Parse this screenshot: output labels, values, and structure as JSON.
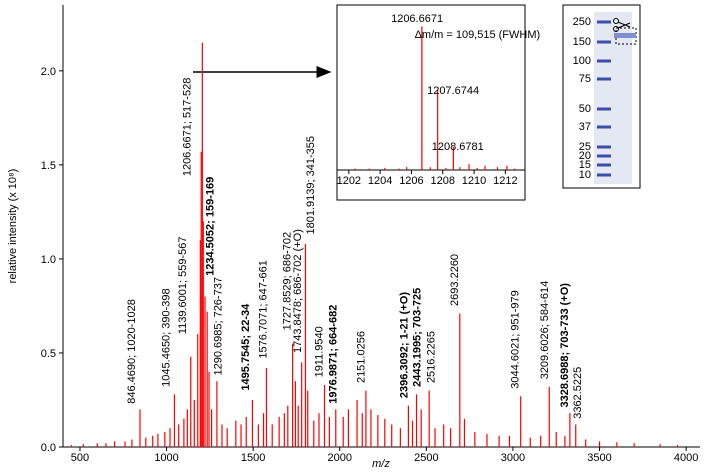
{
  "chart_data": [
    {
      "type": "stem",
      "color": "#ff0000",
      "xlabel": "m/z",
      "ylabel": "relative intensity (x 10⁸)",
      "xlim": [
        402,
        4080
      ],
      "ylim": [
        0,
        2.35
      ],
      "xticks": [
        500,
        1000,
        1500,
        2000,
        2500,
        3000,
        3500,
        4000
      ],
      "yticks": [
        {
          "value": 0,
          "label": "0.0"
        },
        0.5,
        {
          "value": 1,
          "label": "1.0"
        },
        1.5,
        {
          "value": 2,
          "label": "2.0"
        }
      ],
      "x": [
        450,
        520,
        600,
        650,
        700,
        760,
        800,
        846.469,
        880,
        920,
        950,
        990,
        1020,
        1045.465,
        1070,
        1100,
        1120,
        1139.6,
        1160,
        1180,
        1195,
        1200,
        1206.6671,
        1212,
        1222,
        1234.5052,
        1245,
        1260,
        1290.6985,
        1320,
        1350,
        1400,
        1430,
        1460,
        1495.7545,
        1530,
        1560,
        1576.7071,
        1610,
        1650,
        1680,
        1700,
        1727.8529,
        1743.8478,
        1760,
        1780,
        1801.9139,
        1815,
        1850,
        1880,
        1911.954,
        1940,
        1976.9871,
        2020,
        2050,
        2100,
        2130,
        2151.0256,
        2180,
        2220,
        2260,
        2300,
        2350,
        2396.3092,
        2420,
        2443.1995,
        2470,
        2516.2265,
        2550,
        2600,
        2640,
        2693.226,
        2720,
        2780,
        2850,
        2920,
        2980,
        3044.6021,
        3100,
        3160,
        3209.6026,
        3250,
        3300,
        3328.6988,
        3362.5225,
        3420,
        3500,
        3600,
        3700,
        3850,
        3950
      ],
      "values": [
        0.01,
        0.015,
        0.02,
        0.02,
        0.03,
        0.03,
        0.04,
        0.2,
        0.05,
        0.06,
        0.07,
        0.08,
        0.1,
        0.28,
        0.12,
        0.15,
        0.2,
        0.48,
        0.25,
        0.6,
        1.1,
        1.57,
        2.15,
        1.2,
        0.8,
        0.72,
        0.4,
        0.2,
        0.35,
        0.12,
        0.1,
        0.14,
        0.12,
        0.16,
        0.25,
        0.12,
        0.18,
        0.42,
        0.12,
        0.16,
        0.18,
        0.22,
        0.55,
        0.35,
        0.22,
        0.45,
        1.08,
        0.3,
        0.14,
        0.18,
        0.33,
        0.16,
        0.2,
        0.16,
        0.2,
        0.25,
        0.18,
        0.3,
        0.2,
        0.17,
        0.15,
        0.12,
        0.1,
        0.22,
        0.14,
        0.28,
        0.2,
        0.3,
        0.1,
        0.12,
        0.1,
        0.71,
        0.15,
        0.08,
        0.07,
        0.06,
        0.06,
        0.27,
        0.05,
        0.06,
        0.32,
        0.08,
        0.06,
        0.18,
        0.12,
        0.04,
        0.03,
        0.025,
        0.02,
        0.015,
        0.01
      ],
      "annotation_rotation": 90,
      "annotations": [
        {
          "text": "846.4690; 1020-1028",
          "x": 800,
          "y": 0.23,
          "bold": false
        },
        {
          "text": "1045.4650; 390-398",
          "x": 1000,
          "y": 0.32,
          "bold": false
        },
        {
          "text": "1139.6001; 559-567",
          "x": 1095,
          "y": 0.6,
          "bold": false
        },
        {
          "text": "1206.6671; 517-528",
          "x": 1120,
          "y": 1.44,
          "bold": false
        },
        {
          "text": "1234.5052; 159-169",
          "x": 1255,
          "y": 0.91,
          "bold": true
        },
        {
          "text": "1290.6985; 726-737",
          "x": 1300,
          "y": 0.38,
          "bold": false
        },
        {
          "text": "1495.7545; 22-34",
          "x": 1460,
          "y": 0.3,
          "bold": true
        },
        {
          "text": "1576.7071; 647-661",
          "x": 1560,
          "y": 0.47,
          "bold": false
        },
        {
          "text": "1727.8529; 686-702",
          "x": 1700,
          "y": 0.62,
          "bold": false
        },
        {
          "text": "1743.8478; 686-702 (+O)",
          "x": 1760,
          "y": 0.5,
          "bold": false
        },
        {
          "text": "1801.9139; 341-355",
          "x": 1835,
          "y": 1.13,
          "bold": false
        },
        {
          "text": "1911.9540",
          "x": 1885,
          "y": 0.37,
          "bold": false
        },
        {
          "text": "1976.9871; 664-682",
          "x": 1965,
          "y": 0.23,
          "bold": true
        },
        {
          "text": "2151.0256",
          "x": 2125,
          "y": 0.34,
          "bold": false
        },
        {
          "text": "2396.3092; 1-21 (+O)",
          "x": 2375,
          "y": 0.26,
          "bold": true
        },
        {
          "text": "2443.1995; 703-725",
          "x": 2450,
          "y": 0.32,
          "bold": true
        },
        {
          "text": "2516.2265",
          "x": 2530,
          "y": 0.34,
          "bold": false
        },
        {
          "text": "2693.2260",
          "x": 2665,
          "y": 0.75,
          "bold": false
        },
        {
          "text": "3044.6021; 951-979",
          "x": 3015,
          "y": 0.31,
          "bold": false
        },
        {
          "text": "3209.6026; 584-614",
          "x": 3185,
          "y": 0.36,
          "bold": false
        },
        {
          "text": "3328.6988; 703-733 (+O)",
          "x": 3300,
          "y": 0.21,
          "bold": true
        },
        {
          "text": "3362.5225",
          "x": 3375,
          "y": 0.15,
          "bold": false
        }
      ]
    },
    {
      "type": "stem",
      "color": "#ff0000",
      "xlim": [
        1201.5,
        1213
      ],
      "ylim": [
        0,
        1.1
      ],
      "xticks": [
        1202,
        1204,
        1206,
        1208,
        1210,
        1212
      ],
      "x": [
        1202.4,
        1203.3,
        1204.3,
        1205.2,
        1205.7,
        1206.6671,
        1207.2,
        1207.6744,
        1208.2,
        1208.6781,
        1209.1,
        1209.68,
        1210.2,
        1210.7,
        1211.5,
        1212.1,
        1212.6
      ],
      "values": [
        0.01,
        0.01,
        0.015,
        0.01,
        0.02,
        1.0,
        0.02,
        0.56,
        0.015,
        0.16,
        0.02,
        0.04,
        0.015,
        0.03,
        0.02,
        0.03,
        0.01
      ],
      "annotation_rotation": 0,
      "annotations": [
        {
          "text": "1206.6671",
          "x": 1204.7,
          "y": 1.03,
          "bold": false
        },
        {
          "text": "Δm/m = 109,515 (FWHM)",
          "x": 1206.2,
          "y": 0.92,
          "bold": false
        },
        {
          "text": "1207.6744",
          "x": 1207.0,
          "y": 0.53,
          "bold": false
        },
        {
          "text": "1208.6781",
          "x": 1207.3,
          "y": 0.14,
          "bold": false
        }
      ]
    }
  ],
  "gel": {
    "markers": [
      250,
      150,
      100,
      75,
      50,
      37,
      25,
      20,
      15,
      10
    ]
  }
}
